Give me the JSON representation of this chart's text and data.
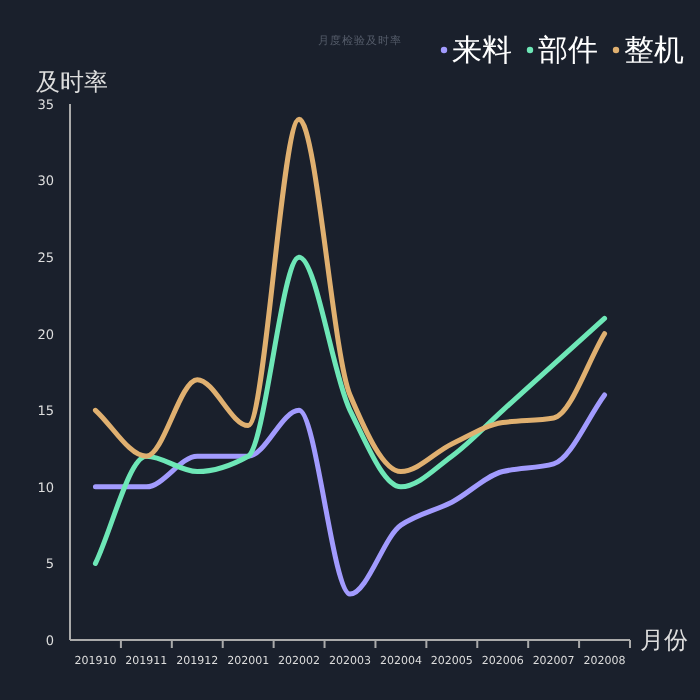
{
  "chart_data": {
    "type": "line",
    "title": "月度检验及时率",
    "xlabel": "月份",
    "ylabel": "及时率",
    "categories": [
      "201910",
      "201911",
      "201912",
      "202001",
      "202002",
      "202003",
      "202004",
      "202005",
      "202006",
      "202007",
      "202008"
    ],
    "series": [
      {
        "name": "来料",
        "color": "#a29bfe",
        "values": [
          10,
          10,
          12,
          12,
          15,
          3,
          7.5,
          9,
          11,
          11.5,
          16
        ]
      },
      {
        "name": "部件",
        "color": "#6ee7b7",
        "values": [
          5,
          12,
          11,
          12,
          25,
          15,
          10,
          12,
          15,
          18,
          21
        ]
      },
      {
        "name": "整机",
        "color": "#e0b070",
        "values": [
          15,
          12,
          17,
          14,
          34,
          16,
          11,
          12.8,
          14.2,
          14.5,
          20
        ]
      }
    ],
    "ylim": [
      0,
      35
    ],
    "yticks": [
      0,
      5,
      10,
      15,
      20,
      25,
      30,
      35
    ],
    "grid": false,
    "legend": "top right",
    "marker": "none",
    "line_style": "solid"
  }
}
